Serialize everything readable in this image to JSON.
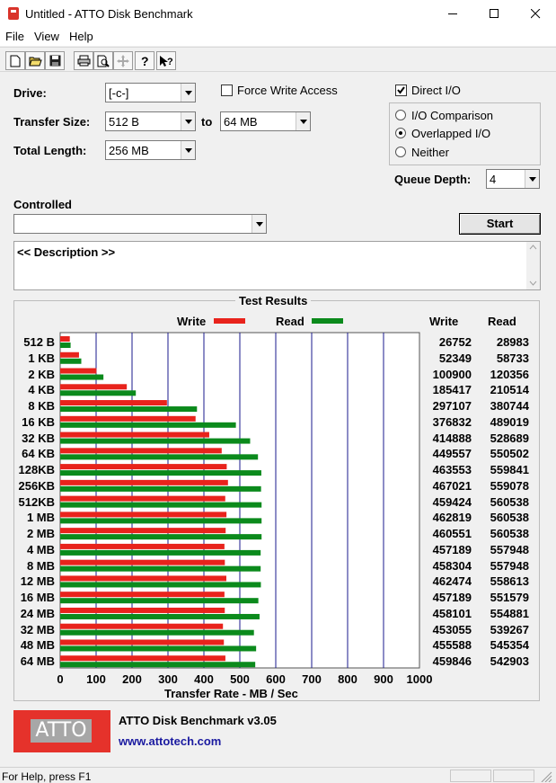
{
  "window": {
    "title": "Untitled - ATTO Disk Benchmark"
  },
  "menu": [
    "File",
    "View",
    "Help"
  ],
  "toolbar": {
    "icons": [
      "new-icon",
      "open-icon",
      "save-icon",
      "print-icon",
      "print-preview-icon",
      "move-icon",
      "help-icon",
      "context-help-icon"
    ]
  },
  "form": {
    "drive_label": "Drive:",
    "drive_value": "[-c-]",
    "transfer_size_label": "Transfer Size:",
    "transfer_from": "512 B",
    "to_label": "to",
    "transfer_to": "64 MB",
    "total_length_label": "Total Length:",
    "total_length_value": "256 MB",
    "force_write_label": "Force Write Access",
    "force_write_checked": false,
    "direct_io_label": "Direct I/O",
    "direct_io_checked": true,
    "io_comparison_label": "I/O Comparison",
    "overlapped_io_label": "Overlapped I/O",
    "neither_label": "Neither",
    "selected_io_mode": "Overlapped I/O",
    "queue_depth_label": "Queue Depth:",
    "queue_depth_value": "4",
    "controlled_label": "Controlled",
    "controlled_value": "",
    "start_label": "Start",
    "description_text": "<< Description >>"
  },
  "results": {
    "title": "Test Results",
    "write_header": "Write",
    "read_header": "Read",
    "legend_write": "Write",
    "legend_read": "Read",
    "colors": {
      "write": "#e8231c",
      "read": "#0b8a1c",
      "grid": "#1a1a8c"
    }
  },
  "chart_data": {
    "type": "bar",
    "orientation": "horizontal",
    "categories": [
      "512 B",
      "1 KB",
      "2 KB",
      "4 KB",
      "8 KB",
      "16 KB",
      "32 KB",
      "64 KB",
      "128KB",
      "256KB",
      "512KB",
      "1 MB",
      "2 MB",
      "4 MB",
      "8 MB",
      "12 MB",
      "16 MB",
      "24 MB",
      "32 MB",
      "48 MB",
      "64 MB"
    ],
    "series": [
      {
        "name": "Write",
        "values": [
          26752,
          52349,
          100900,
          185417,
          297107,
          376832,
          414888,
          449557,
          463553,
          467021,
          459424,
          462819,
          460551,
          457189,
          458304,
          462474,
          457189,
          458101,
          453055,
          455588,
          459846
        ]
      },
      {
        "name": "Read",
        "values": [
          28983,
          58733,
          120356,
          210514,
          380744,
          489019,
          528689,
          550502,
          559841,
          559078,
          560538,
          560538,
          560538,
          557948,
          557948,
          558613,
          551579,
          554881,
          539267,
          545354,
          542903
        ]
      }
    ],
    "x_ticks": [
      "0",
      "100",
      "200",
      "300",
      "400",
      "500",
      "600",
      "700",
      "800",
      "900",
      "1000"
    ],
    "xlim": [
      0,
      1000
    ],
    "xlabel": "Transfer Rate - MB / Sec",
    "legend": "top"
  },
  "footer": {
    "logo_text": "ATTO",
    "product_name": "ATTO Disk Benchmark v3.05",
    "url": "www.attotech.com"
  },
  "status": {
    "text": "For Help, press F1"
  }
}
